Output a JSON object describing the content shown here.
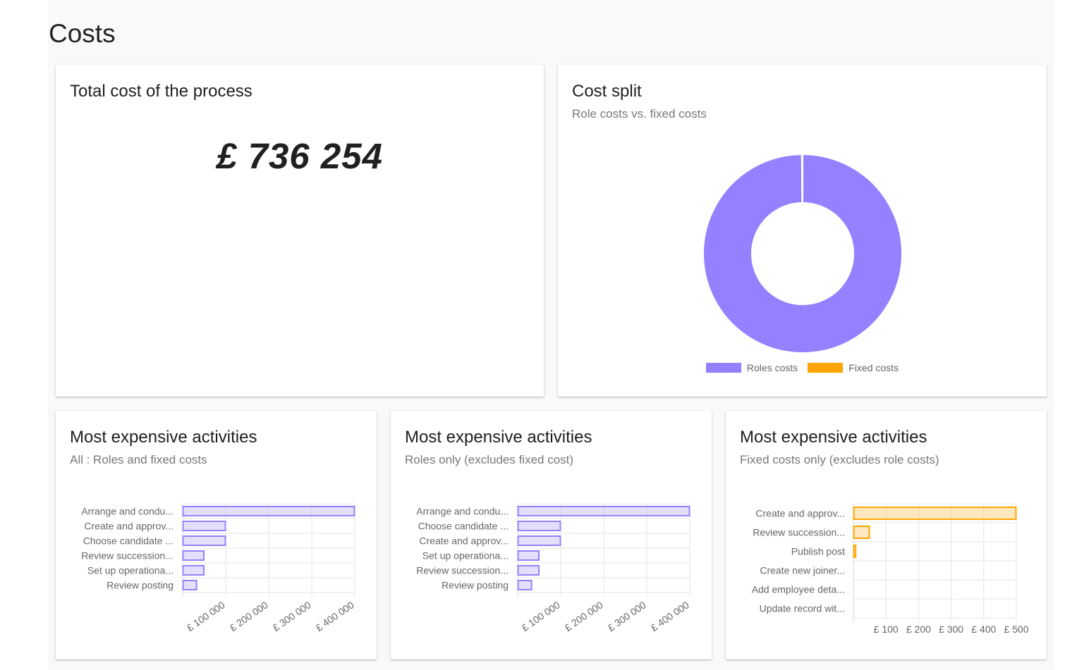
{
  "page": {
    "title": "Costs"
  },
  "total_card": {
    "title": "Total cost of the process",
    "value": "£ 736 254"
  },
  "split_card": {
    "title": "Cost split",
    "subtitle": "Role costs vs. fixed costs"
  },
  "activities_all": {
    "title": "Most expensive activities",
    "subtitle": "All : Roles and fixed costs"
  },
  "activities_roles": {
    "title": "Most expensive activities",
    "subtitle": "Roles only (excludes fixed cost)"
  },
  "activities_fixed": {
    "title": "Most expensive activities",
    "subtitle": "Fixed costs only (excludes role costs)"
  },
  "colors": {
    "roles": "#9580ff",
    "fixed": "#ffa500"
  },
  "chart_data": [
    {
      "type": "pie",
      "title": "Cost split",
      "subtitle": "Role costs vs. fixed costs",
      "donut": true,
      "categories": [
        "Roles costs",
        "Fixed costs"
      ],
      "values": [
        735254,
        1000
      ],
      "colors": [
        "#9580ff",
        "#ffa500"
      ],
      "legend": "bottom"
    },
    {
      "type": "bar",
      "orientation": "horizontal",
      "title": "Most expensive activities",
      "subtitle": "All : Roles and fixed costs",
      "categories": [
        "Arrange and condu...",
        "Create and approv...",
        "Choose candidate ...",
        "Review succession...",
        "Set up operationa...",
        "Review posting"
      ],
      "values": [
        400000,
        100000,
        100000,
        50000,
        50000,
        33000
      ],
      "xlim": [
        0,
        400000
      ],
      "xticks": [
        "£ 100 000",
        "£ 200 000",
        "£ 300 000",
        "£ 400 000"
      ],
      "xtick_values": [
        100000,
        200000,
        300000,
        400000
      ],
      "color": "#9580ff",
      "grid": true
    },
    {
      "type": "bar",
      "orientation": "horizontal",
      "title": "Most expensive activities",
      "subtitle": "Roles only (excludes fixed cost)",
      "categories": [
        "Arrange and condu...",
        "Choose candidate ...",
        "Create and approv...",
        "Set up operationa...",
        "Review succession...",
        "Review posting"
      ],
      "values": [
        400000,
        100000,
        100000,
        50000,
        50000,
        33000
      ],
      "xlim": [
        0,
        400000
      ],
      "xticks": [
        "£ 100 000",
        "£ 200 000",
        "£ 300 000",
        "£ 400 000"
      ],
      "xtick_values": [
        100000,
        200000,
        300000,
        400000
      ],
      "color": "#9580ff",
      "grid": true
    },
    {
      "type": "bar",
      "orientation": "horizontal",
      "title": "Most expensive activities",
      "subtitle": "Fixed costs only (excludes role costs)",
      "categories": [
        "Create and approv...",
        "Review succession...",
        "Publish post",
        "Create new joiner...",
        "Add employee deta...",
        "Update record wit..."
      ],
      "values": [
        500,
        50,
        8,
        0,
        0,
        0
      ],
      "xlim": [
        0,
        500
      ],
      "xticks": [
        "£ 100",
        "£ 200",
        "£ 300",
        "£ 400",
        "£ 500"
      ],
      "xtick_values": [
        100,
        200,
        300,
        400,
        500
      ],
      "color": "#ffa500",
      "grid": true
    }
  ]
}
